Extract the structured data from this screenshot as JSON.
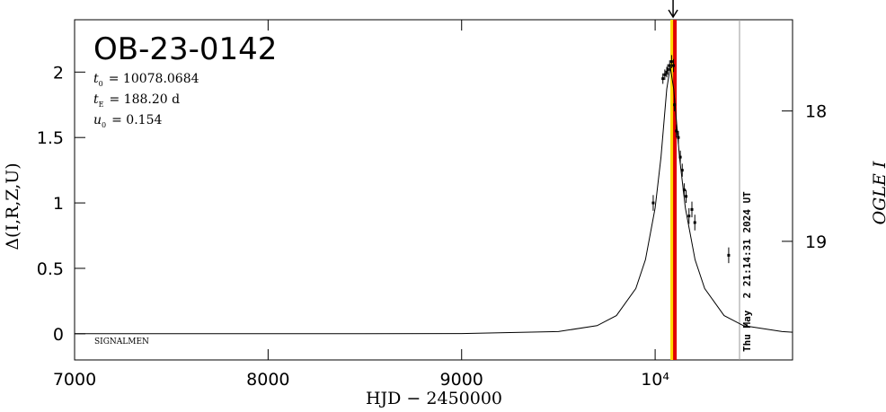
{
  "chart_data": {
    "type": "scatter",
    "title": "OB-23-0142",
    "params": [
      {
        "symbol": "t",
        "sub": "0",
        "text": "= 10078.0684"
      },
      {
        "symbol": "t",
        "sub": "E",
        "text": "= 188.20 d"
      },
      {
        "symbol": "u",
        "sub": "0",
        "text": "= 0.154"
      }
    ],
    "observer": "SIGNALMEN",
    "timestamp": "Thu May  2 21:14:31 2024 UT",
    "x_label": "HJD − 2450000",
    "y_label": "Δ(I,R,Z,U)",
    "y2_label": "OGLE I",
    "xlim": [
      7000,
      10710
    ],
    "xticks": [
      7000,
      8000,
      9000,
      {
        "value": 10000,
        "label": "10⁴"
      }
    ],
    "ylim": [
      -0.2,
      2.4
    ],
    "yticks": [
      0,
      0.5,
      1,
      1.5,
      2
    ],
    "y2lim": [
      19.91,
      17.3
    ],
    "y2ticks": [
      18,
      19
    ],
    "series": [
      {
        "color": "#000000",
        "x": [
          9990,
          10040,
          10050,
          10060,
          10065,
          10075,
          10085,
          10095,
          10100,
          10110,
          10120,
          10130,
          10140,
          10150,
          10160,
          10175,
          10190,
          10205,
          10380
        ],
        "values": [
          1.0,
          1.95,
          1.98,
          2.0,
          2.02,
          2.05,
          2.08,
          2.05,
          1.75,
          1.55,
          1.5,
          1.35,
          1.25,
          1.1,
          1.05,
          0.9,
          0.95,
          0.85,
          0.6
        ],
        "errors": [
          0.06,
          0.04,
          0.04,
          0.04,
          0.04,
          0.04,
          0.05,
          0.05,
          0.05,
          0.05,
          0.05,
          0.05,
          0.05,
          0.05,
          0.05,
          0.06,
          0.06,
          0.06,
          0.06
        ]
      }
    ],
    "model": {
      "color": "#000000",
      "x": [
        7000,
        8000,
        8500,
        9000,
        9500,
        9700,
        9800,
        9900,
        9950,
        10000,
        10030,
        10060,
        10078,
        10096,
        10126,
        10156,
        10206,
        10256,
        10356,
        10456,
        10656,
        10710
      ],
      "values": [
        0,
        0,
        0,
        0.002,
        0.017,
        0.062,
        0.139,
        0.346,
        0.566,
        0.962,
        1.35,
        1.87,
        2.04,
        1.87,
        1.35,
        0.962,
        0.566,
        0.346,
        0.139,
        0.062,
        0.017,
        0.012
      ]
    },
    "vlines": [
      {
        "x": 10088,
        "color": "#ffd700"
      },
      {
        "x": 10102,
        "color": "#e00000"
      },
      {
        "x": 10436,
        "color": "#999999"
      }
    ]
  }
}
